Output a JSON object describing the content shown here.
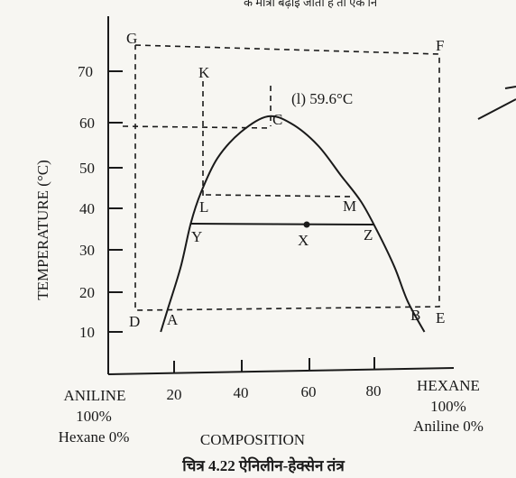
{
  "header_fragment": "के मात्रा बढ़ाई जाती है तो एक नि",
  "chart_data": {
    "type": "phase-diagram",
    "ylabel": "TEMPERATURE (°C)",
    "xlabel": "COMPOSITION",
    "y_ticks": [
      10,
      20,
      30,
      40,
      50,
      60,
      70
    ],
    "x_ticks": [
      20,
      40,
      60,
      80
    ],
    "ylim": [
      5,
      78
    ],
    "xlim": [
      0,
      100
    ],
    "left_end": [
      "ANILINE",
      "100%",
      "Hexane 0%"
    ],
    "right_end": [
      "HEXANE",
      "100%",
      "Aniline 0%"
    ],
    "curve": {
      "name": "miscibility curve",
      "points": [
        [
          16,
          10
        ],
        [
          18,
          15
        ],
        [
          22,
          25
        ],
        [
          25,
          35
        ],
        [
          28,
          42
        ],
        [
          33,
          50
        ],
        [
          40,
          56
        ],
        [
          48,
          59.6
        ],
        [
          55,
          58
        ],
        [
          63,
          53
        ],
        [
          70,
          46
        ],
        [
          76,
          40
        ],
        [
          81,
          33
        ],
        [
          86,
          25
        ],
        [
          90,
          17
        ],
        [
          95,
          10
        ]
      ]
    },
    "critical_temperature_label": "(l) 59.6°C",
    "points": [
      {
        "label": "C",
        "x": 48,
        "y": 59.6
      },
      {
        "label": "A",
        "x": 17,
        "y": 14
      },
      {
        "label": "B",
        "x": 91,
        "y": 14
      },
      {
        "label": "L",
        "x": 28,
        "y": 42
      },
      {
        "label": "M",
        "x": 76,
        "y": 42
      },
      {
        "label": "Y",
        "x": 25,
        "y": 35
      },
      {
        "label": "Z",
        "x": 81,
        "y": 35
      },
      {
        "label": "X",
        "x": 53,
        "y": 35
      },
      {
        "label": "G",
        "x": 7,
        "y": 76
      },
      {
        "label": "F",
        "x": 96,
        "y": 76
      },
      {
        "label": "D",
        "x": 7,
        "y": 14
      },
      {
        "label": "E",
        "x": 96,
        "y": 14
      },
      {
        "label": "K",
        "x": 28,
        "y": 70
      }
    ],
    "caption": "चित्र 4.22 ऐनिलीन-हेक्सेन तंत्र"
  }
}
